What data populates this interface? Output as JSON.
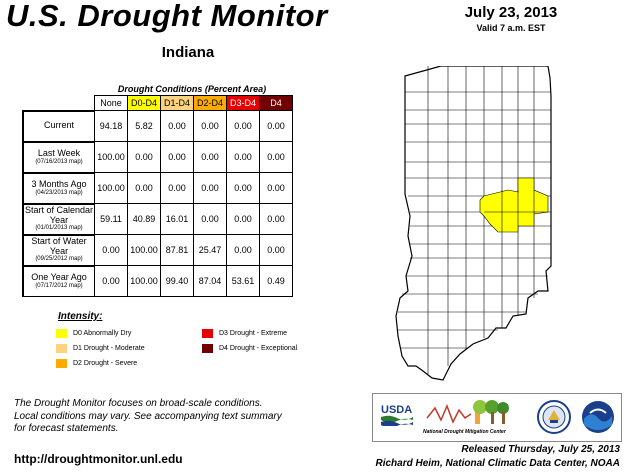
{
  "header": {
    "title": "U.S. Drought Monitor",
    "state": "Indiana",
    "date": "July 23, 2013",
    "valid": "Valid 7 a.m. EST"
  },
  "table": {
    "caption": "Drought Conditions (Percent Area)",
    "columns": [
      "None",
      "D0-D4",
      "D1-D4",
      "D2-D4",
      "D3-D4",
      "D4"
    ],
    "column_colors": [
      "#ffffff",
      "#ffff00",
      "#fcd37f",
      "#ffaa00",
      "#e60000",
      "#730000"
    ],
    "rows": [
      {
        "label": "Current",
        "sublabel": "",
        "values": [
          "94.18",
          "5.82",
          "0.00",
          "0.00",
          "0.00",
          "0.00"
        ]
      },
      {
        "label": "Last Week",
        "sublabel": "(07/16/2013 map)",
        "values": [
          "100.00",
          "0.00",
          "0.00",
          "0.00",
          "0.00",
          "0.00"
        ]
      },
      {
        "label": "3 Months Ago",
        "sublabel": "(04/23/2013 map)",
        "values": [
          "100.00",
          "0.00",
          "0.00",
          "0.00",
          "0.00",
          "0.00"
        ]
      },
      {
        "label": "Start of Calendar Year",
        "sublabel": "(01/01/2013 map)",
        "values": [
          "59.11",
          "40.89",
          "16.01",
          "0.00",
          "0.00",
          "0.00"
        ]
      },
      {
        "label": "Start of Water Year",
        "sublabel": "(09/25/2012 map)",
        "values": [
          "0.00",
          "100.00",
          "87.81",
          "25.47",
          "0.00",
          "0.00"
        ]
      },
      {
        "label": "One Year Ago",
        "sublabel": "(07/17/2012 map)",
        "values": [
          "0.00",
          "100.00",
          "99.40",
          "87.04",
          "53.61",
          "0.49"
        ]
      }
    ]
  },
  "legend": {
    "title": "Intensity:",
    "items": [
      {
        "label": "D0 Abnormally Dry",
        "color": "#ffff00"
      },
      {
        "label": "D1 Drought - Moderate",
        "color": "#fcd37f"
      },
      {
        "label": "D2 Drought - Severe",
        "color": "#ffaa00"
      },
      {
        "label": "D3 Drought - Extreme",
        "color": "#e60000"
      },
      {
        "label": "D4 Drought - Exceptional",
        "color": "#730000"
      }
    ]
  },
  "footer": {
    "note_line1": "The Drought Monitor focuses on broad-scale conditions.",
    "note_line2": "Local conditions may vary. See accompanying text summary",
    "note_line3": "for forecast statements.",
    "url": "http://droughtmonitor.unl.edu",
    "released": "Released Thursday, July 25, 2013",
    "author": "Richard Heim, National Climatic Data Center, NOAA"
  },
  "logos": {
    "usda": "USDA",
    "ndmc": "National Drought Mitigation Center"
  },
  "map": {
    "state": "Indiana",
    "drought_area_color": "#ffff00",
    "outline_color": "#000000"
  }
}
